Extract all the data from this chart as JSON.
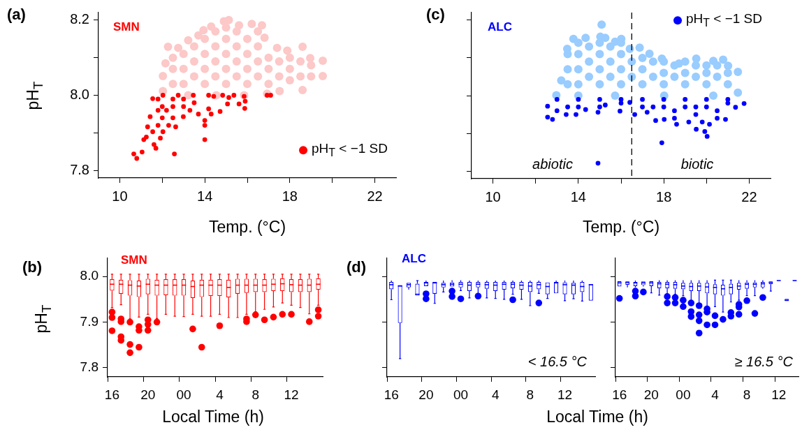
{
  "chart_data": [
    {
      "type": "scatter",
      "title": "(a)",
      "subtitle": "SMN",
      "xlabel": "Temp. (°C)",
      "ylabel": "pH$_{T}$",
      "xlim": [
        9,
        23
      ],
      "ylim": [
        7.78,
        8.22
      ],
      "xticks": [
        10,
        {
          "value": 12,
          "label": null
        },
        14,
        {
          "value": 16,
          "label": null
        },
        18,
        {
          "value": 20,
          "label": null
        },
        22
      ],
      "yticks": [
        7.8,
        {
          "value": 7.9,
          "label": null
        },
        {
          "value": 8,
          "label": "8.0"
        },
        {
          "value": 8.1,
          "label": null
        },
        8.2
      ],
      "grid": false,
      "legend": "bottom right",
      "marker": "circle",
      "series": [
        {
          "color": "#fcc8c8",
          "x": [
            12.03,
            12.03,
            12.15,
            12.27,
            12.75,
            13.22,
            13.7,
            13.94,
            14.3,
            14.9,
            15.13,
            15.61,
            16.21,
            16.69,
            16.81,
            17.4,
            17.88,
            18.6,
            18.96,
            19.55,
            19.55,
            18.6,
            17.52,
            16.93,
            15.85,
            14.54,
            13.22,
            12.5,
            12.5,
            12.5,
            13,
            13,
            13,
            13.5,
            13.5,
            13.5,
            14,
            14,
            14,
            14,
            14.5,
            14.5,
            14.5,
            14.5,
            15,
            15,
            15,
            15,
            15,
            15.5,
            15.5,
            15.5,
            15.5,
            16,
            16,
            16,
            16,
            16.5,
            16.5,
            16.5,
            16.5,
            17,
            17,
            17,
            17.5,
            17.5,
            18,
            18,
            18,
            18.5,
            18.5,
            19,
            19
          ],
          "values": [
            8.011,
            8.051,
            8.085,
            8.129,
            8.126,
            8.146,
            8.159,
            8.173,
            8.183,
            8.197,
            8.2,
            8.186,
            8.19,
            8.186,
            8.153,
            8.126,
            8.119,
            8.129,
            8.099,
            8.092,
            8.051,
            8.014,
            8.011,
            8.004,
            8.0,
            8.0,
            8.0,
            8.03,
            8.07,
            8.1,
            8.03,
            8.07,
            8.11,
            8.05,
            8.09,
            8.13,
            8.03,
            8.07,
            8.11,
            8.15,
            8.05,
            8.09,
            8.13,
            8.17,
            8.03,
            8.07,
            8.11,
            8.15,
            8.18,
            8.05,
            8.09,
            8.13,
            8.17,
            8.03,
            8.07,
            8.11,
            8.15,
            8.05,
            8.09,
            8.13,
            8.17,
            8.03,
            8.07,
            8.1,
            8.05,
            8.09,
            8.04,
            8.07,
            8.1,
            8.05,
            8.09,
            8.05,
            8.08
          ]
        },
        {
          "name": "pH$_{T}$ < −1 SD",
          "color": "#ff0000",
          "x": [
            11.55,
            11.43,
            11.31,
            11.55,
            12.03,
            12.63,
            12.99,
            13.7,
            14.18,
            14.42,
            12.03,
            12.75,
            13.46,
            14.18,
            12,
            12.5,
            13,
            13.5,
            12,
            12.5,
            11.8,
            12.3,
            13,
            12.5,
            11.8,
            11.8,
            12.2,
            13.3,
            10.66,
            10.8,
            11.05,
            11.13,
            11.25,
            11.61,
            11.7,
            11.91,
            12.57,
            14,
            14,
            14,
            14.72,
            14.3,
            15.07,
            15.13,
            15.37,
            15.61,
            15.88,
            15.9,
            15.85,
            16.93,
            17.1,
            14.84
          ],
          "values": [
            7.991,
            7.943,
            7.916,
            7.903,
            7.903,
            7.916,
            7.943,
            7.95,
            7.964,
            7.997,
            8.0,
            8.0,
            8.0,
            8.0,
            7.97,
            7.97,
            7.97,
            7.98,
            7.94,
            7.94,
            7.92,
            7.92,
            7.99,
            7.99,
            7.96,
            7.99,
            7.96,
            7.96,
            7.844,
            7.832,
            7.849,
            7.882,
            7.889,
            7.869,
            7.859,
            7.886,
            7.844,
            7.882,
            7.92,
            7.933,
            7.957,
            7.95,
            7.977,
            7.994,
            8.0,
            7.977,
            7.965,
            7.984,
            7.997,
            8.0,
            8.0,
            8.0
          ]
        }
      ]
    },
    {
      "type": "box",
      "title": "(b)",
      "subtitle": "SMN",
      "xlabel": "Local Time (h)",
      "ylabel": "pH$_{T}$",
      "color": "#ff0000",
      "ylim": [
        7.78,
        8.04
      ],
      "yticks": [
        7.8,
        {
          "value": 7.9,
          "label": "7.9"
        },
        {
          "value": 8,
          "label": "8.0"
        }
      ],
      "grid": false,
      "categories": [
        "16",
        null,
        null,
        null,
        "20",
        null,
        null,
        null,
        "00",
        null,
        null,
        null,
        "4",
        null,
        null,
        null,
        "8",
        null,
        null,
        null,
        "12",
        null,
        null,
        null
      ],
      "boxes": [
        {
          "low": 7.932,
          "q1": 7.969,
          "median": 7.983,
          "q3": 7.994,
          "high": 8.005,
          "outliers": [
            7.922,
            7.91,
            7.881
          ]
        },
        {
          "low": 7.938,
          "q1": 7.962,
          "median": 7.983,
          "q3": 7.993,
          "high": 8.005,
          "outliers": [
            7.907,
            7.901,
            7.868,
            7.86
          ]
        },
        {
          "low": 7.907,
          "q1": 7.958,
          "median": 7.981,
          "q3": 7.992,
          "high": 8.005,
          "outliers": [
            7.9,
            7.851,
            7.833
          ]
        },
        {
          "low": 7.911,
          "q1": 7.955,
          "median": 7.979,
          "q3": 7.991,
          "high": 8.005,
          "outliers": [
            7.89,
            7.882,
            7.845
          ]
        },
        {
          "low": 7.917,
          "q1": 7.961,
          "median": 7.983,
          "q3": 7.995,
          "high": 8.005,
          "outliers": [
            7.905,
            7.895,
            7.882
          ]
        },
        {
          "low": 7.908,
          "q1": 7.958,
          "median": 7.981,
          "q3": 7.993,
          "high": 8.005,
          "outliers": [
            7.9
          ]
        },
        {
          "low": 7.917,
          "q1": 7.959,
          "median": 7.981,
          "q3": 7.994,
          "high": 8.005
        },
        {
          "low": 7.913,
          "q1": 7.958,
          "median": 7.981,
          "q3": 7.994,
          "high": 8.005
        },
        {
          "low": 7.912,
          "q1": 7.958,
          "median": 7.981,
          "q3": 7.994,
          "high": 8.005
        },
        {
          "low": 7.917,
          "q1": 7.953,
          "median": 7.978,
          "q3": 7.991,
          "high": 8.005,
          "outliers": [
            7.885
          ]
        },
        {
          "low": 7.913,
          "q1": 7.955,
          "median": 7.981,
          "q3": 7.993,
          "high": 8.005,
          "outliers": [
            7.845
          ]
        },
        {
          "low": 7.913,
          "q1": 7.957,
          "median": 7.981,
          "q3": 7.993,
          "high": 8.005
        },
        {
          "low": 7.917,
          "q1": 7.957,
          "median": 7.981,
          "q3": 7.994,
          "high": 8.005,
          "outliers": [
            7.892
          ]
        },
        {
          "low": 7.91,
          "q1": 7.954,
          "median": 7.976,
          "q3": 7.993,
          "high": 8.005
        },
        {
          "low": 7.91,
          "q1": 7.962,
          "median": 7.981,
          "q3": 7.995,
          "high": 8.005
        },
        {
          "low": 7.917,
          "q1": 7.964,
          "median": 7.981,
          "q3": 7.995,
          "high": 8.005,
          "outliers": [
            7.907,
            7.901
          ]
        },
        {
          "low": 7.923,
          "q1": 7.966,
          "median": 7.981,
          "q3": 7.995,
          "high": 8.005,
          "outliers": [
            7.916
          ]
        },
        {
          "low": 7.928,
          "q1": 7.966,
          "median": 7.981,
          "q3": 7.994,
          "high": 8.005,
          "outliers": [
            7.905
          ]
        },
        {
          "low": 7.933,
          "q1": 7.968,
          "median": 7.983,
          "q3": 7.995,
          "high": 8.005,
          "outliers": [
            7.911
          ]
        },
        {
          "low": 7.942,
          "q1": 7.968,
          "median": 7.984,
          "q3": 7.996,
          "high": 8.005,
          "outliers": [
            7.917
          ]
        },
        {
          "low": 7.937,
          "q1": 7.966,
          "median": 7.982,
          "q3": 7.994,
          "high": 8.005,
          "outliers": [
            7.917
          ]
        },
        {
          "low": 7.932,
          "q1": 7.966,
          "median": 7.981,
          "q3": 7.994,
          "high": 8.005
        },
        {
          "low": 7.918,
          "q1": 7.966,
          "median": 7.981,
          "q3": 7.995,
          "high": 8.005,
          "outliers": [
            7.901
          ]
        },
        {
          "low": 7.937,
          "q1": 7.971,
          "median": 7.983,
          "q3": 7.996,
          "high": 8.005,
          "outliers": [
            7.927,
            7.913
          ]
        }
      ]
    },
    {
      "type": "scatter",
      "title": "(c)",
      "subtitle": "ALC",
      "xlabel": "Temp. (°C)",
      "xlim": [
        9,
        23
      ],
      "ylim": [
        7.78,
        8.22
      ],
      "xticks": [
        10,
        {
          "value": 12,
          "label": null
        },
        14,
        {
          "value": 16,
          "label": null
        },
        18,
        {
          "value": 20,
          "label": null
        },
        22
      ],
      "yticks": [
        7.8,
        7.9,
        8,
        8.1,
        8.2
      ],
      "tick_labels": "x",
      "grid": false,
      "legend": "top right",
      "marker": "circle",
      "ref_lines": [
        {
          "axis": "x",
          "value": 16.5,
          "color": "#000000",
          "line_style": "dashed"
        }
      ],
      "annotations": [
        "abiotic",
        "biotic"
      ],
      "series": [
        {
          "color": "#99ccff",
          "x": [
            12.97,
            13.2,
            13.48,
            13.77,
            14.34,
            15.03,
            15.09,
            15.26,
            15.72,
            16.01,
            16.41,
            16.87,
            17.33,
            17.91,
            18.71,
            19.52,
            20.32,
            20.78,
            21.01,
            21.47,
            21.47,
            20.32,
            18.02,
            15.72,
            14,
            13.5,
            13.5,
            13.5,
            14,
            14,
            14,
            14,
            14.5,
            14.5,
            14.5,
            15,
            15,
            15,
            15,
            15.5,
            15.5,
            15.5,
            16,
            16,
            16,
            16,
            16.5,
            16.5,
            17,
            17,
            17,
            17.5,
            17.5,
            18,
            18,
            18,
            18.5,
            18.5,
            19,
            19,
            19,
            19.5,
            19.5,
            20,
            20,
            20,
            20.5,
            20.5,
            21,
            21
          ],
          "values": [
            8.001,
            8.04,
            8.124,
            8.15,
            8.153,
            8.156,
            8.188,
            8.153,
            8.143,
            8.15,
            8.124,
            8.127,
            8.111,
            8.098,
            8.085,
            8.098,
            8.092,
            8.095,
            8.079,
            8.063,
            8.008,
            8.0,
            8.0,
            8.0,
            8.0,
            8.03,
            8.07,
            8.11,
            8.03,
            8.07,
            8.11,
            8.14,
            8.05,
            8.09,
            8.13,
            8.03,
            8.07,
            8.11,
            8.14,
            8.05,
            8.09,
            8.13,
            8.03,
            8.07,
            8.11,
            8.14,
            8.05,
            8.09,
            8.03,
            8.07,
            8.1,
            8.05,
            8.09,
            8.03,
            8.06,
            8.09,
            8.05,
            8.08,
            8.03,
            8.06,
            8.09,
            8.05,
            8.08,
            8.03,
            8.06,
            8.08,
            8.05,
            8.08,
            8.03,
            8.06
          ]
        },
        {
          "name": "pH$_{T}$ < −1 SD",
          "color": "#0000ff",
          "x": [
            12.56,
            12.56,
            12.79,
            13.43,
            13.89,
            14.34,
            14.92,
            15.26,
            15.95,
            16.41,
            16.64,
            17.22,
            17.62,
            18.02,
            18.6,
            19.17,
            19.52,
            19.92,
            20.03,
            20.14,
            20.89,
            21.36,
            21.76,
            17.91,
            14.92,
            13,
            14,
            15,
            16,
            17,
            18,
            19,
            20,
            21,
            13.5,
            15,
            17.5,
            18.5,
            19.5,
            20.5,
            19.8,
            13,
            14,
            16,
            17,
            18,
            19,
            20,
            21,
            18.5,
            19.5,
            20.5
          ],
          "values": [
            7.972,
            7.943,
            7.937,
            7.95,
            7.95,
            7.963,
            7.956,
            7.975,
            7.959,
            7.982,
            7.95,
            7.956,
            7.934,
            7.937,
            7.924,
            7.93,
            7.911,
            7.905,
            7.892,
            7.924,
            7.937,
            7.969,
            7.979,
            7.875,
            7.821,
            7.99,
            7.99,
            7.99,
            7.99,
            7.99,
            7.99,
            7.99,
            7.99,
            7.99,
            7.97,
            7.97,
            7.97,
            7.96,
            7.95,
            7.96,
            7.93,
            7.96,
            7.97,
            7.98,
            7.97,
            7.97,
            7.97,
            7.97,
            7.98,
            7.94,
            7.97,
            7.94
          ]
        }
      ]
    },
    {
      "type": "box",
      "title": "(d)",
      "subtitle": "ALC",
      "xlabel": "Local Time (h)",
      "color": "#0000ff",
      "ylim": [
        7.78,
        8.04
      ],
      "yticks": [
        7.8,
        7.9,
        8
      ],
      "tick_labels": "x",
      "grid": false,
      "annotations": [
        "< 16.5 °C"
      ],
      "categories": [
        "16",
        null,
        null,
        null,
        "20",
        null,
        null,
        null,
        "00",
        null,
        null,
        null,
        "4",
        null,
        null,
        null,
        "8",
        null,
        null,
        null,
        "12",
        null,
        null,
        null
      ],
      "boxes": [
        {
          "low": 7.949,
          "q1": 7.972,
          "median": 7.982,
          "q3": 7.988,
          "high": 7.991
        },
        {
          "low": 7.82,
          "q1": 7.898,
          "median": 7.979,
          "q3": 7.981,
          "high": 7.981
        },
        {
          "low": 7.971,
          "q1": 7.976,
          "median": 7.982,
          "q3": 7.986,
          "high": 7.986
        },
        {
          "low": 7.958,
          "q1": 7.958,
          "median": 7.961,
          "q3": 7.984,
          "high": 7.991
        },
        {
          "low": 7.979,
          "q1": 7.979,
          "median": 7.986,
          "q3": 7.988,
          "high": 7.991,
          "outliers": [
            7.962,
            7.951
          ]
        },
        {
          "low": 7.941,
          "q1": 7.962,
          "median": 7.986,
          "q3": 7.988,
          "high": 7.988
        },
        {
          "low": 7.966,
          "q1": 7.976,
          "median": 7.982,
          "q3": 7.986,
          "high": 7.991
        },
        {
          "low": 7.978,
          "q1": 7.978,
          "median": 7.983,
          "q3": 7.987,
          "high": 7.992,
          "outliers": [
            7.968,
            7.956
          ]
        },
        {
          "low": 7.969,
          "q1": 7.976,
          "median": 7.983,
          "q3": 7.988,
          "high": 7.992,
          "outliers": [
            7.951
          ]
        },
        {
          "low": 7.953,
          "q1": 7.968,
          "median": 7.981,
          "q3": 7.988,
          "high": 7.991
        },
        {
          "low": 7.962,
          "q1": 7.976,
          "median": 7.983,
          "q3": 7.988,
          "high": 7.991,
          "outliers": [
            7.957
          ]
        },
        {
          "low": 7.953,
          "q1": 7.973,
          "median": 7.982,
          "q3": 7.988,
          "high": 7.991
        },
        {
          "low": 7.952,
          "q1": 7.968,
          "median": 7.981,
          "q3": 7.988,
          "high": 7.991
        },
        {
          "low": 7.95,
          "q1": 7.971,
          "median": 7.983,
          "q3": 7.988,
          "high": 7.991
        },
        {
          "low": 7.961,
          "q1": 7.974,
          "median": 7.983,
          "q3": 7.988,
          "high": 7.991,
          "outliers": [
            7.949
          ]
        },
        {
          "low": 7.95,
          "q1": 7.971,
          "median": 7.981,
          "q3": 7.988,
          "high": 7.991
        },
        {
          "low": 7.936,
          "q1": 7.966,
          "median": 7.979,
          "q3": 7.988,
          "high": 7.991
        },
        {
          "low": 7.963,
          "q1": 7.972,
          "median": 7.982,
          "q3": 7.988,
          "high": 7.991,
          "outliers": [
            7.942
          ]
        },
        {
          "low": 7.952,
          "q1": 7.961,
          "median": 7.978,
          "q3": 7.987,
          "high": 7.987
        },
        {
          "low": 7.963,
          "q1": 7.963,
          "median": 7.986,
          "q3": 7.988,
          "high": 7.991
        },
        {
          "low": 7.947,
          "q1": 7.961,
          "median": 7.982,
          "q3": 7.987,
          "high": 7.991
        },
        {
          "low": 7.951,
          "q1": 7.961,
          "median": 7.981,
          "q3": 7.986,
          "high": 7.991
        },
        {
          "low": 7.946,
          "q1": 7.966,
          "median": 7.978,
          "q3": 7.988,
          "high": 7.991
        },
        {
          "low": 7.947,
          "q1": 7.947,
          "median": 7.982,
          "q3": 7.983,
          "high": 7.983
        }
      ]
    },
    {
      "type": "box",
      "color": "#0000ff",
      "ylim": [
        7.78,
        8.04
      ],
      "yticks": [
        7.8,
        7.9,
        8
      ],
      "tick_labels": "x",
      "grid": false,
      "annotations": [
        "≥ 16.5 °C"
      ],
      "categories": [
        "16",
        null,
        null,
        null,
        "20",
        null,
        null,
        null,
        "00",
        null,
        null,
        null,
        "4",
        null,
        null,
        null,
        "8",
        null,
        null,
        null,
        "12",
        null,
        null
      ],
      "boxes": [
        {
          "low": 7.978,
          "q1": 7.978,
          "median": 7.986,
          "q3": 7.99,
          "high": 7.99,
          "outliers": [
            7.952
          ]
        },
        {
          "low": 7.976,
          "q1": 7.982,
          "median": 7.987,
          "q3": 7.989,
          "high": 7.989
        },
        {
          "low": 7.976,
          "q1": 7.979,
          "median": 7.986,
          "q3": 7.988,
          "high": 7.991,
          "outliers": [
            7.968,
            7.957
          ]
        },
        {
          "low": 7.978,
          "q1": 7.981,
          "median": 7.986,
          "q3": 7.989,
          "high": 7.989,
          "outliers": [
            7.966
          ]
        },
        {
          "low": 7.964,
          "q1": 7.979,
          "median": 7.986,
          "q3": 7.99,
          "high": 7.99
        },
        {
          "low": 7.959,
          "q1": 7.974,
          "median": 7.984,
          "q3": 7.988,
          "high": 7.992
        },
        {
          "low": 7.961,
          "q1": 7.974,
          "median": 7.983,
          "q3": 7.988,
          "high": 7.992,
          "outliers": [
            7.956,
            7.942
          ]
        },
        {
          "low": 7.961,
          "q1": 7.973,
          "median": 7.982,
          "q3": 7.988,
          "high": 7.992,
          "outliers": [
            7.954,
            7.942
          ]
        },
        {
          "low": 7.958,
          "q1": 7.972,
          "median": 7.979,
          "q3": 7.986,
          "high": 7.992,
          "outliers": [
            7.948,
            7.934
          ]
        },
        {
          "low": 7.943,
          "q1": 7.968,
          "median": 7.978,
          "q3": 7.986,
          "high": 7.992,
          "outliers": [
            7.942,
            7.923,
            7.912
          ]
        },
        {
          "low": 7.941,
          "q1": 7.968,
          "median": 7.979,
          "q3": 7.986,
          "high": 7.992,
          "outliers": [
            7.936,
            7.916,
            7.903,
            7.876
          ]
        },
        {
          "low": 7.933,
          "q1": 7.963,
          "median": 7.977,
          "q3": 7.986,
          "high": 7.992,
          "outliers": [
            7.929,
            7.922,
            7.894
          ]
        },
        {
          "low": 7.934,
          "q1": 7.961,
          "median": 7.976,
          "q3": 7.983,
          "high": 7.992,
          "outliers": [
            7.914,
            7.894
          ]
        },
        {
          "low": 7.922,
          "q1": 7.958,
          "median": 7.973,
          "q3": 7.982,
          "high": 7.992,
          "outliers": [
            7.906
          ]
        },
        {
          "low": 7.944,
          "q1": 7.961,
          "median": 7.976,
          "q3": 7.984,
          "high": 7.992,
          "outliers": [
            7.921,
            7.913
          ]
        },
        {
          "low": 7.948,
          "q1": 7.971,
          "median": 7.979,
          "q3": 7.986,
          "high": 7.992,
          "outliers": [
            7.939,
            7.933,
            7.917
          ]
        },
        {
          "low": 7.958,
          "q1": 7.973,
          "median": 7.983,
          "q3": 7.987,
          "high": 7.992,
          "outliers": [
            7.947
          ]
        },
        {
          "low": 7.958,
          "q1": 7.976,
          "median": 7.983,
          "q3": 7.987,
          "high": 7.992,
          "outliers": [
            7.919
          ]
        },
        {
          "low": 7.973,
          "q1": 7.976,
          "median": 7.984,
          "q3": 7.988,
          "high": 7.992,
          "outliers": [
            7.954
          ]
        },
        {
          "low": 7.968,
          "q1": 7.983,
          "median": 7.987,
          "q3": 7.989,
          "high": 7.989
        },
        {
          "low": 7.991,
          "q1": 7.991,
          "median": 7.991,
          "q3": 7.991,
          "high": 7.991
        },
        {
          "low": 7.946,
          "q1": 7.946,
          "median": 7.948,
          "q3": 7.951,
          "high": 7.951
        },
        {
          "low": 7.991,
          "q1": 7.991,
          "median": 7.991,
          "q3": 7.991,
          "high": 7.991
        }
      ]
    }
  ]
}
